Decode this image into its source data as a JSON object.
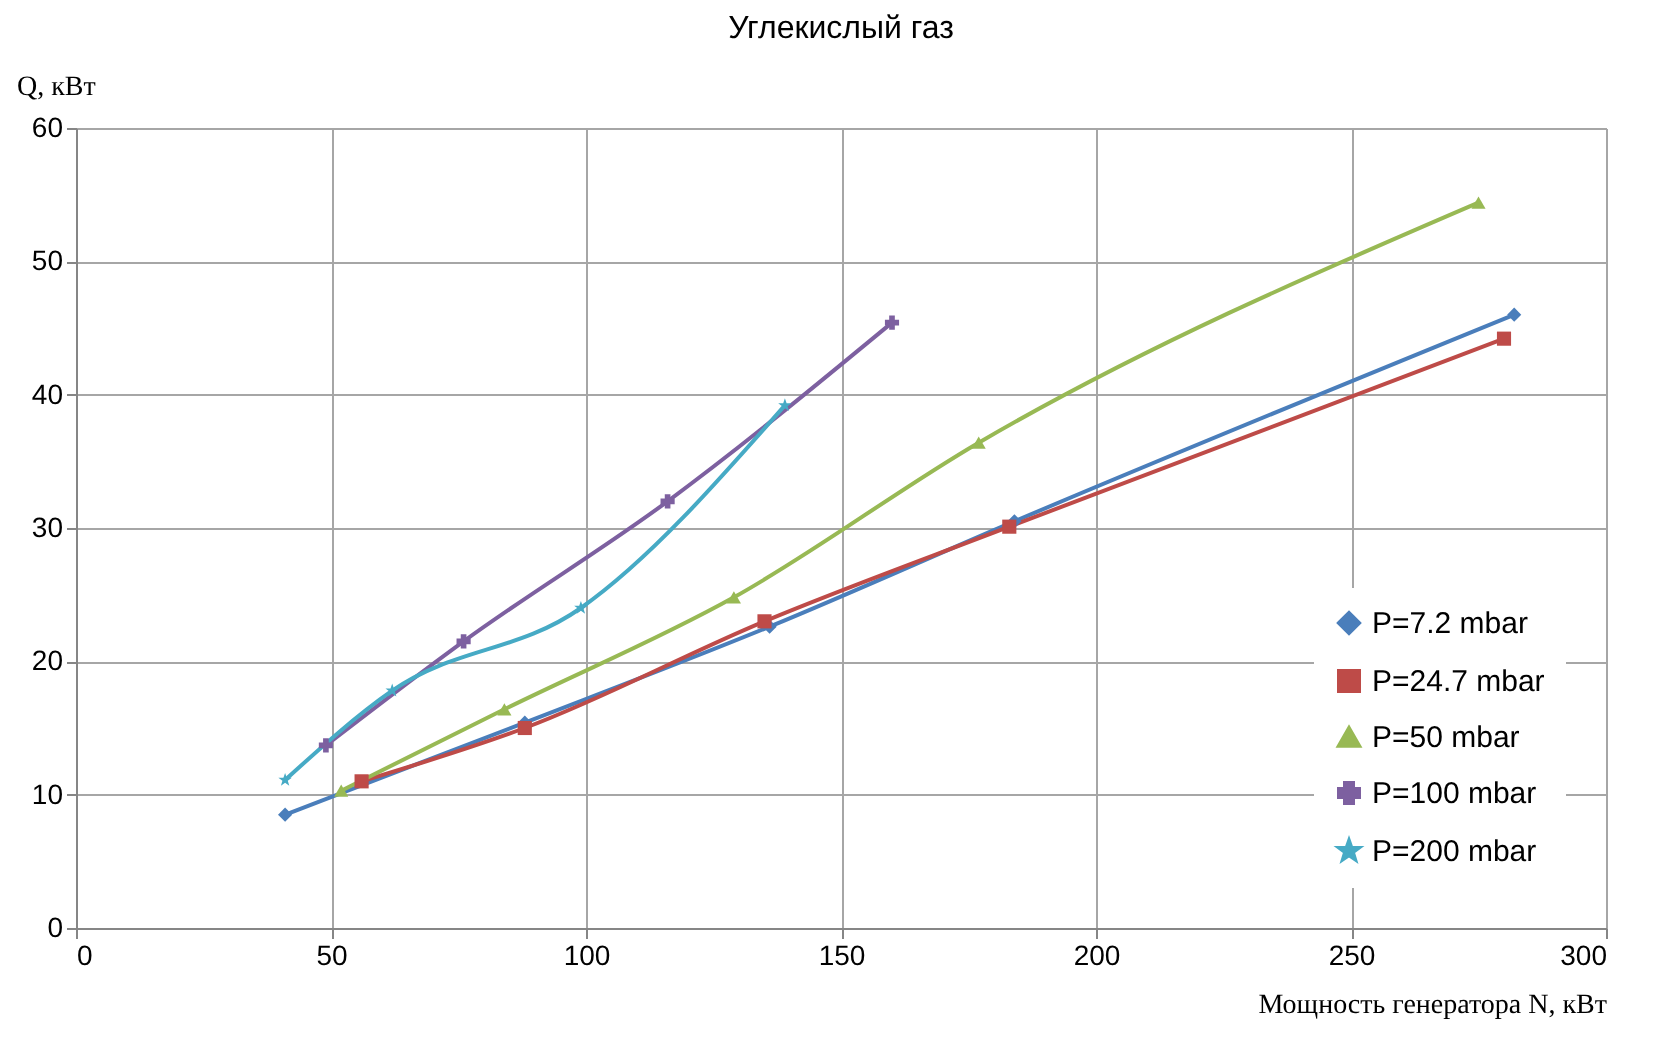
{
  "chart_data": {
    "type": "line",
    "title": "Углекислый газ",
    "xlabel": "Мощность генератора N, кВт",
    "ylabel": "Q, кВт",
    "xlim": [
      0,
      300
    ],
    "xticks": [
      0,
      50,
      100,
      150,
      200,
      250,
      300
    ],
    "ylim": [
      0,
      60
    ],
    "yticks": [
      0,
      10,
      20,
      30,
      40,
      50,
      60
    ],
    "grid": true,
    "legend": "bottom right",
    "line_style": "solid",
    "series": [
      {
        "name": "P=7.2 mbar",
        "color": "#4a7ebb",
        "marker": "diamond",
        "x": [
          41,
          88,
          136,
          184,
          282
        ],
        "values": [
          8.5,
          15.4,
          22.6,
          30.5,
          46
        ]
      },
      {
        "name": "P=24.7 mbar",
        "color": "#be4b48",
        "marker": "square",
        "x": [
          56,
          88,
          135,
          183,
          280
        ],
        "values": [
          11,
          15,
          23,
          30.1,
          44.2
        ]
      },
      {
        "name": "P=50 mbar",
        "color": "#98b954",
        "marker": "triangle",
        "x": [
          52,
          84,
          129,
          177,
          275
        ],
        "values": [
          10.3,
          16.4,
          24.8,
          36.4,
          54.4
        ]
      },
      {
        "name": "P=100 mbar",
        "color": "#7d60a0",
        "marker": "cross",
        "x": [
          49,
          76,
          116,
          160
        ],
        "values": [
          13.7,
          21.5,
          32,
          45.4
        ]
      },
      {
        "name": "P=200 mbar",
        "color": "#46aac5",
        "marker": "star",
        "x": [
          41,
          62,
          99,
          139
        ],
        "values": [
          11.1,
          17.8,
          24,
          39.2
        ]
      }
    ]
  }
}
